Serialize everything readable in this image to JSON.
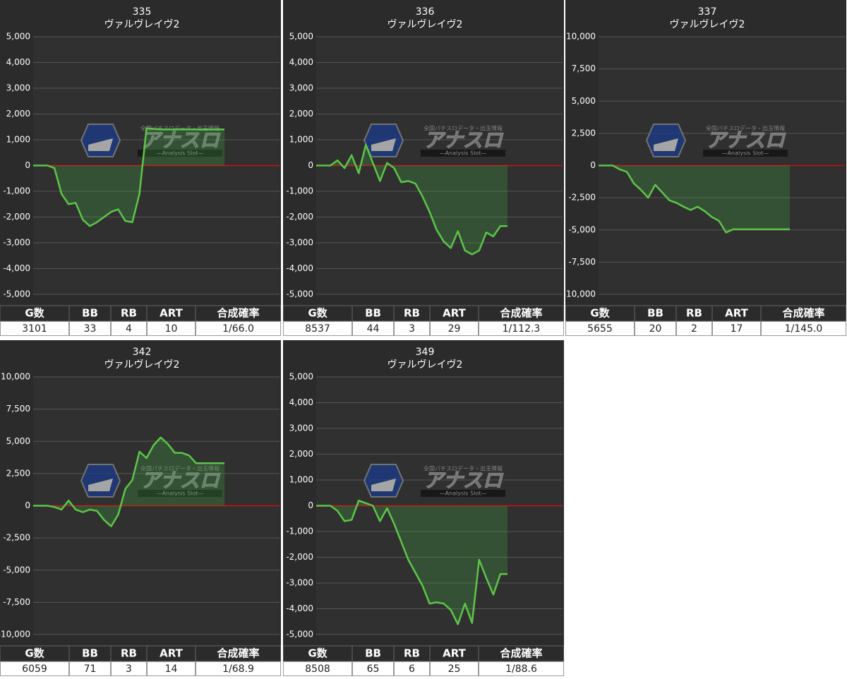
{
  "watermark": {
    "tagline": "全国パチスロデータ・出玉情報",
    "text": "アナスロ",
    "subtitle": "—Analysis Slot—"
  },
  "chart_data": [
    {
      "type": "line",
      "title": "335",
      "subtitle": "ヴァルヴレイヴ2",
      "ylim": [
        -5000,
        5000
      ],
      "yticks": [
        {
          "value": 5000,
          "label": "5,000"
        },
        {
          "value": 4000,
          "label": "4,000"
        },
        {
          "value": 3000,
          "label": "3,000"
        },
        {
          "value": 2000,
          "label": "2,000"
        },
        {
          "value": 1000,
          "label": "1,000"
        },
        0,
        {
          "value": -1000,
          "label": "-1,000"
        },
        {
          "value": -2000,
          "label": "-2,000"
        },
        {
          "value": -3000,
          "label": "-3,000"
        },
        {
          "value": -4000,
          "label": "-4,000"
        },
        {
          "value": -5000,
          "label": "-5,000"
        }
      ],
      "grid": true,
      "color": "#5cc648",
      "values": [
        0,
        0,
        0,
        -100,
        -1100,
        -1500,
        -1450,
        -2100,
        -2350,
        -2200,
        -2000,
        -1800,
        -1700,
        -2150,
        -2200,
        -1100,
        1450,
        1420,
        1400,
        1400,
        1400,
        1400,
        1400,
        1400,
        1400,
        1400,
        1400,
        1400
      ],
      "table": {
        "headers": [
          "G数",
          "BB",
          "RB",
          "ART",
          "合成確率"
        ],
        "row": [
          "3101",
          "33",
          "4",
          "10",
          "1/66.0"
        ]
      }
    },
    {
      "type": "line",
      "title": "336",
      "subtitle": "ヴァルヴレイヴ2",
      "ylim": [
        -5000,
        5000
      ],
      "yticks": [
        {
          "value": 5000,
          "label": "5,000"
        },
        {
          "value": 4000,
          "label": "4,000"
        },
        {
          "value": 3000,
          "label": "3,000"
        },
        {
          "value": 2000,
          "label": "2,000"
        },
        {
          "value": 1000,
          "label": "1,000"
        },
        0,
        {
          "value": -1000,
          "label": "-1,000"
        },
        {
          "value": -2000,
          "label": "-2,000"
        },
        {
          "value": -3000,
          "label": "-3,000"
        },
        {
          "value": -4000,
          "label": "-4,000"
        },
        {
          "value": -5000,
          "label": "-5,000"
        }
      ],
      "grid": true,
      "color": "#5cc648",
      "values": [
        0,
        0,
        0,
        200,
        -100,
        400,
        -300,
        800,
        100,
        -600,
        100,
        -100,
        -650,
        -600,
        -700,
        -1200,
        -1800,
        -2500,
        -2950,
        -3200,
        -2550,
        -3300,
        -3450,
        -3300,
        -2600,
        -2750,
        -2350,
        -2350
      ],
      "table": {
        "headers": [
          "G数",
          "BB",
          "RB",
          "ART",
          "合成確率"
        ],
        "row": [
          "8537",
          "44",
          "3",
          "29",
          "1/112.3"
        ]
      }
    },
    {
      "type": "line",
      "title": "337",
      "subtitle": "ヴァルヴレイヴ2",
      "ylim": [
        -10000,
        10000
      ],
      "yticks": [
        {
          "value": 10000,
          "label": "10,000"
        },
        {
          "value": 7500,
          "label": "7,500"
        },
        {
          "value": 5000,
          "label": "5,000"
        },
        {
          "value": 2500,
          "label": "2,500"
        },
        0,
        {
          "value": -2500,
          "label": "-2,500"
        },
        {
          "value": -5000,
          "label": "-5,000"
        },
        {
          "value": -7500,
          "label": "-7,500"
        },
        {
          "value": -10000,
          "label": "-10,000"
        }
      ],
      "grid": true,
      "color": "#5cc648",
      "values": [
        0,
        0,
        0,
        -300,
        -500,
        -1400,
        -1900,
        -2500,
        -1500,
        -2100,
        -2700,
        -2900,
        -3200,
        -3450,
        -3200,
        -3550,
        -4000,
        -4300,
        -5200,
        -4950,
        -4950,
        -4950,
        -4950,
        -4950,
        -4950,
        -4950,
        -4950,
        -4950
      ],
      "table": {
        "headers": [
          "G数",
          "BB",
          "RB",
          "ART",
          "合成確率"
        ],
        "row": [
          "5655",
          "20",
          "2",
          "17",
          "1/145.0"
        ]
      }
    },
    {
      "type": "line",
      "title": "342",
      "subtitle": "ヴァルヴレイヴ2",
      "ylim": [
        -10000,
        10000
      ],
      "yticks": [
        {
          "value": 10000,
          "label": "10,000"
        },
        {
          "value": 7500,
          "label": "7,500"
        },
        {
          "value": 5000,
          "label": "5,000"
        },
        {
          "value": 2500,
          "label": "2,500"
        },
        0,
        {
          "value": -2500,
          "label": "-2,500"
        },
        {
          "value": -5000,
          "label": "-5,000"
        },
        {
          "value": -7500,
          "label": "-7,500"
        },
        {
          "value": -10000,
          "label": "-10,000"
        }
      ],
      "grid": true,
      "color": "#5cc648",
      "values": [
        0,
        0,
        0,
        -100,
        -300,
        400,
        -300,
        -500,
        -300,
        -400,
        -1100,
        -1600,
        -700,
        1300,
        2000,
        4200,
        3700,
        4700,
        5300,
        4800,
        4100,
        4100,
        3900,
        3300,
        3300,
        3300,
        3300,
        3300
      ],
      "table": {
        "headers": [
          "G数",
          "BB",
          "RB",
          "ART",
          "合成確率"
        ],
        "row": [
          "6059",
          "71",
          "3",
          "14",
          "1/68.9"
        ]
      }
    },
    {
      "type": "line",
      "title": "349",
      "subtitle": "ヴァルヴレイヴ2",
      "ylim": [
        -5000,
        5000
      ],
      "yticks": [
        {
          "value": 5000,
          "label": "5,000"
        },
        {
          "value": 4000,
          "label": "4,000"
        },
        {
          "value": 3000,
          "label": "3,000"
        },
        {
          "value": 2000,
          "label": "2,000"
        },
        {
          "value": 1000,
          "label": "1,000"
        },
        0,
        {
          "value": -1000,
          "label": "-1,000"
        },
        {
          "value": -2000,
          "label": "-2,000"
        },
        {
          "value": -3000,
          "label": "-3,000"
        },
        {
          "value": -4000,
          "label": "-4,000"
        },
        {
          "value": -5000,
          "label": "-5,000"
        }
      ],
      "grid": true,
      "color": "#5cc648",
      "values": [
        0,
        0,
        0,
        -200,
        -600,
        -550,
        200,
        100,
        0,
        -600,
        -100,
        -700,
        -1400,
        -2100,
        -2600,
        -3100,
        -3800,
        -3750,
        -3800,
        -4050,
        -4600,
        -3800,
        -4550,
        -2100,
        -2800,
        -3450,
        -2650,
        -2650
      ],
      "table": {
        "headers": [
          "G数",
          "BB",
          "RB",
          "ART",
          "合成確率"
        ],
        "row": [
          "8508",
          "65",
          "6",
          "25",
          "1/88.6"
        ]
      }
    }
  ]
}
